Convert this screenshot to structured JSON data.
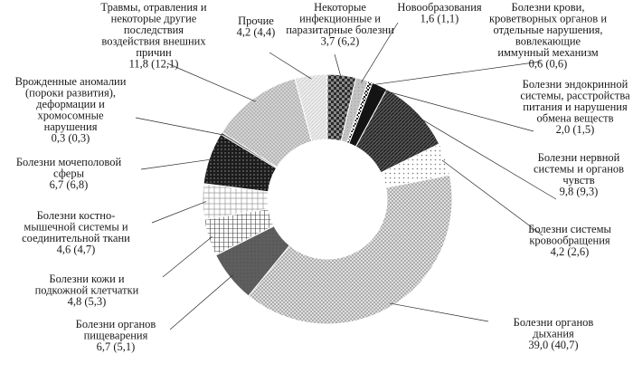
{
  "chart_data": {
    "type": "pie",
    "variant": "donut",
    "value_format": "current (previous)",
    "categories": [
      "Некоторые инфекционные и паразитарные болезни",
      "Новообразования",
      "Болезни крови, кроветворных органов и отдельные нарушения, вовлекающие иммунный механизм",
      "Болезни эндокринной системы, расстройства питания и нарушения обмена веществ",
      "Болезни нервной системы и органов чувств",
      "Болезни системы кровообращения",
      "Болезни органов дыхания",
      "Болезни органов пищеварения",
      "Болезни кожи и подкожной клетчатки",
      "Болезни костно-мышечной системы и соединительной ткани",
      "Болезни мочеполовой сферы",
      "Врожденные аномалии (пороки развития), деформации и хромосомные нарушения",
      "Травмы, отравления и некоторые другие последствия воздействия внешних причин",
      "Прочие"
    ],
    "series": [
      {
        "values": [
          3.7,
          1.6,
          0.6,
          2.0,
          9.8,
          4.2,
          39.0,
          6.7,
          4.8,
          4.6,
          6.7,
          0.3,
          11.8,
          4.2
        ]
      },
      {
        "values": [
          6.2,
          1.1,
          0.6,
          1.5,
          9.3,
          2.6,
          40.7,
          5.1,
          5.3,
          4.7,
          6.8,
          0.3,
          12.1,
          4.4
        ]
      }
    ],
    "labels": [
      {
        "lines": [
          "Некоторые",
          "инфекционные и",
          "паразитарные болезни",
          "3,7 (6,2)"
        ]
      },
      {
        "lines": [
          "Новообразования",
          "1,6 (1,1)"
        ]
      },
      {
        "lines": [
          "Болезни крови,",
          "кроветворных органов и",
          "отдельные нарушения,",
          "вовлекающие",
          "иммунный механизм",
          "0,6 (0,6)"
        ]
      },
      {
        "lines": [
          "Болезни эндокринной",
          "системы, расстройства",
          "питания и нарушения",
          "обмена веществ",
          "2,0 (1,5)"
        ]
      },
      {
        "lines": [
          "Болезни нервной",
          "системы и органов",
          "чувств",
          "9,8 (9,3)"
        ]
      },
      {
        "lines": [
          "Болезни системы",
          "кровообращения",
          "4,2 (2,6)"
        ]
      },
      {
        "lines": [
          "Болезни органов",
          "дыхания",
          "39,0 (40,7)"
        ]
      },
      {
        "lines": [
          "Болезни органов",
          "пищеварения",
          "6,7 (5,1)"
        ]
      },
      {
        "lines": [
          "Болезни кожи и",
          "подкожной клетчатки",
          "4,8 (5,3)"
        ]
      },
      {
        "lines": [
          "Болезни костно-",
          "мышечной системы и",
          "соединительной ткани",
          "4,6 (4,7)"
        ]
      },
      {
        "lines": [
          "Болезни мочеполовой",
          "сферы",
          "6,7 (6,8)"
        ]
      },
      {
        "lines": [
          "Врожденные аномалии",
          "(пороки развития),",
          "деформации и",
          "хромосомные",
          "нарушения",
          "0,3 (0,3)"
        ]
      },
      {
        "lines": [
          "Травмы, отравления и",
          "некоторые другие",
          "последствия",
          "воздействия внешних",
          "причин",
          "11,8 (12,1)"
        ]
      },
      {
        "lines": [
          "Прочие",
          "4,2 (4,4)"
        ]
      }
    ],
    "fills": [
      "dark-checker",
      "light-gray",
      "small-checker",
      "solid-black",
      "dense-diagonal",
      "dots",
      "fine-crosshatch",
      "dark-gray",
      "light-grid",
      "sparse-grid",
      "dark-dots",
      "dark-gray-solid",
      "light-dots",
      "light-crosshatch"
    ],
    "start_angle_deg": 0,
    "direction": "clockwise",
    "legend": "none",
    "title": ""
  }
}
